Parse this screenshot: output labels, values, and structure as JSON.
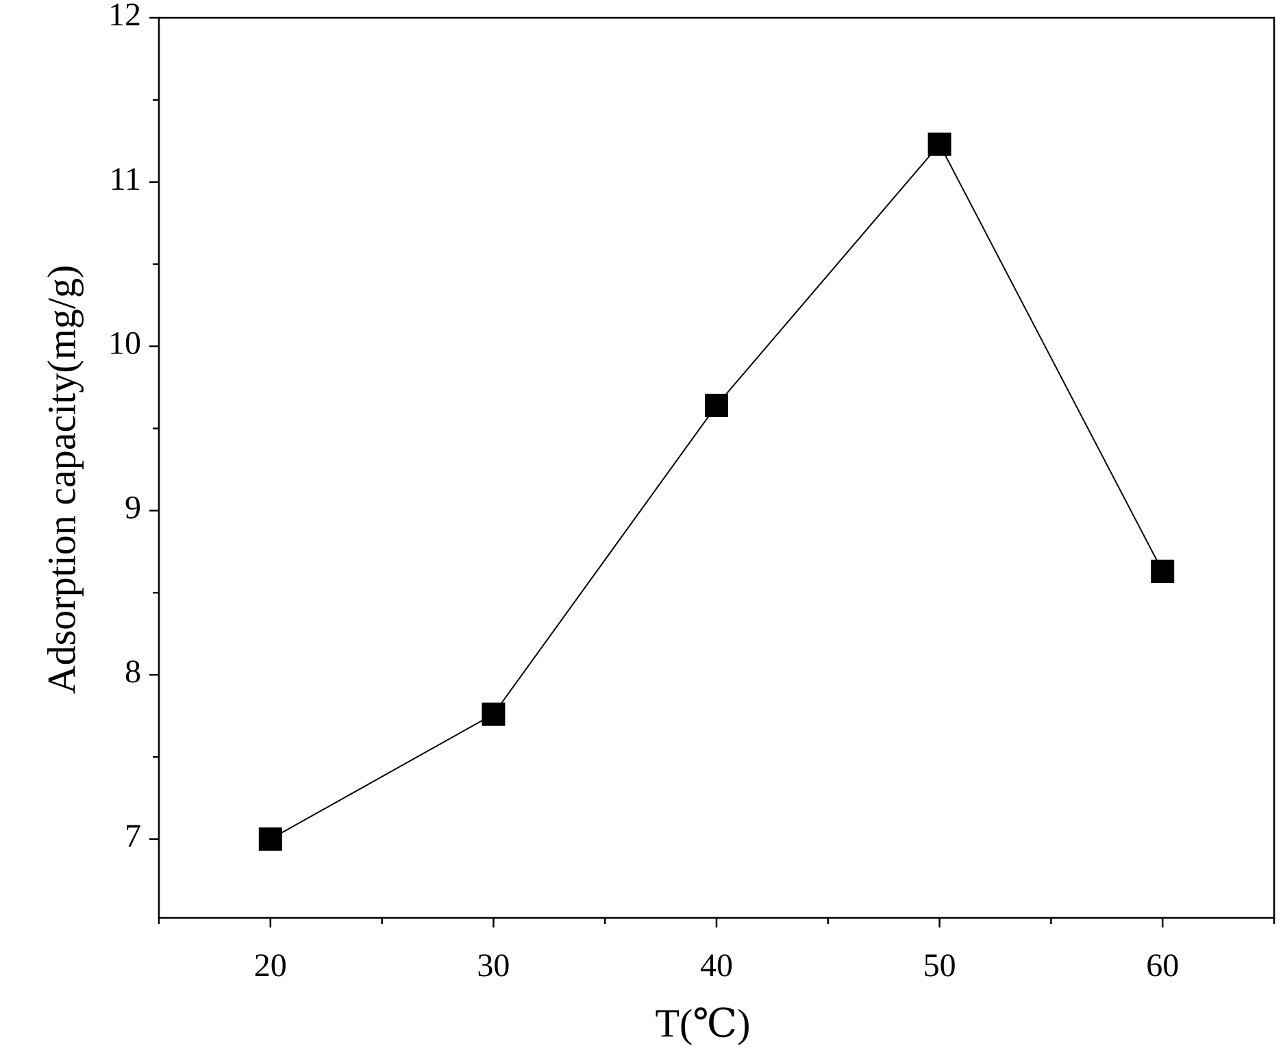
{
  "chart_data": {
    "type": "line",
    "x_label": "T(℃)",
    "y_label": "Adsorption capacity(mg/g)",
    "x": [
      20,
      30,
      40,
      50,
      60
    ],
    "series": [
      {
        "color": "#000000",
        "values": [
          7.0,
          7.76,
          9.64,
          11.23,
          8.63
        ]
      }
    ],
    "xlim": [
      15,
      65
    ],
    "xticks": [
      20,
      30,
      40,
      50,
      60
    ],
    "xminorticks": [
      15,
      25,
      35,
      45,
      55,
      65
    ],
    "ylim": [
      6.52,
      12
    ],
    "yticks": [
      7,
      8,
      9,
      10,
      11,
      12
    ],
    "yminorticks": [
      7.5,
      8.5,
      9.5,
      10.5,
      11.5
    ],
    "y_label_color": "#4a3520",
    "marker": "square",
    "grid": false
  }
}
